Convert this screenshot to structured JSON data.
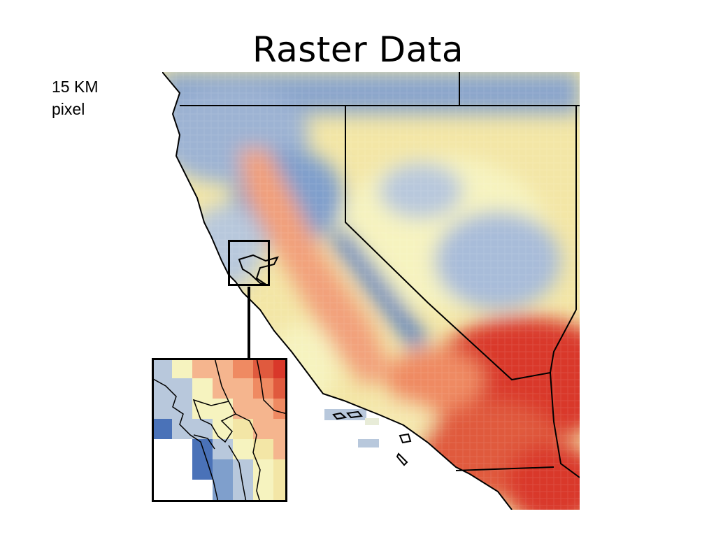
{
  "slide": {
    "title": "Raster Data",
    "pixel_label_line1": "15 KM",
    "pixel_label_line2": "pixel"
  },
  "map": {
    "palette": {
      "dark_blue": "#4a72b8",
      "blue": "#7f9fcc",
      "light_blue": "#b8c8dc",
      "pale_yellow": "#f6f3bf",
      "yellow": "#f3e6a6",
      "light_orange": "#f5b58e",
      "orange": "#ef8a62",
      "red": "#d9382a",
      "ocean": "#ffffff",
      "border": "#000000"
    }
  }
}
